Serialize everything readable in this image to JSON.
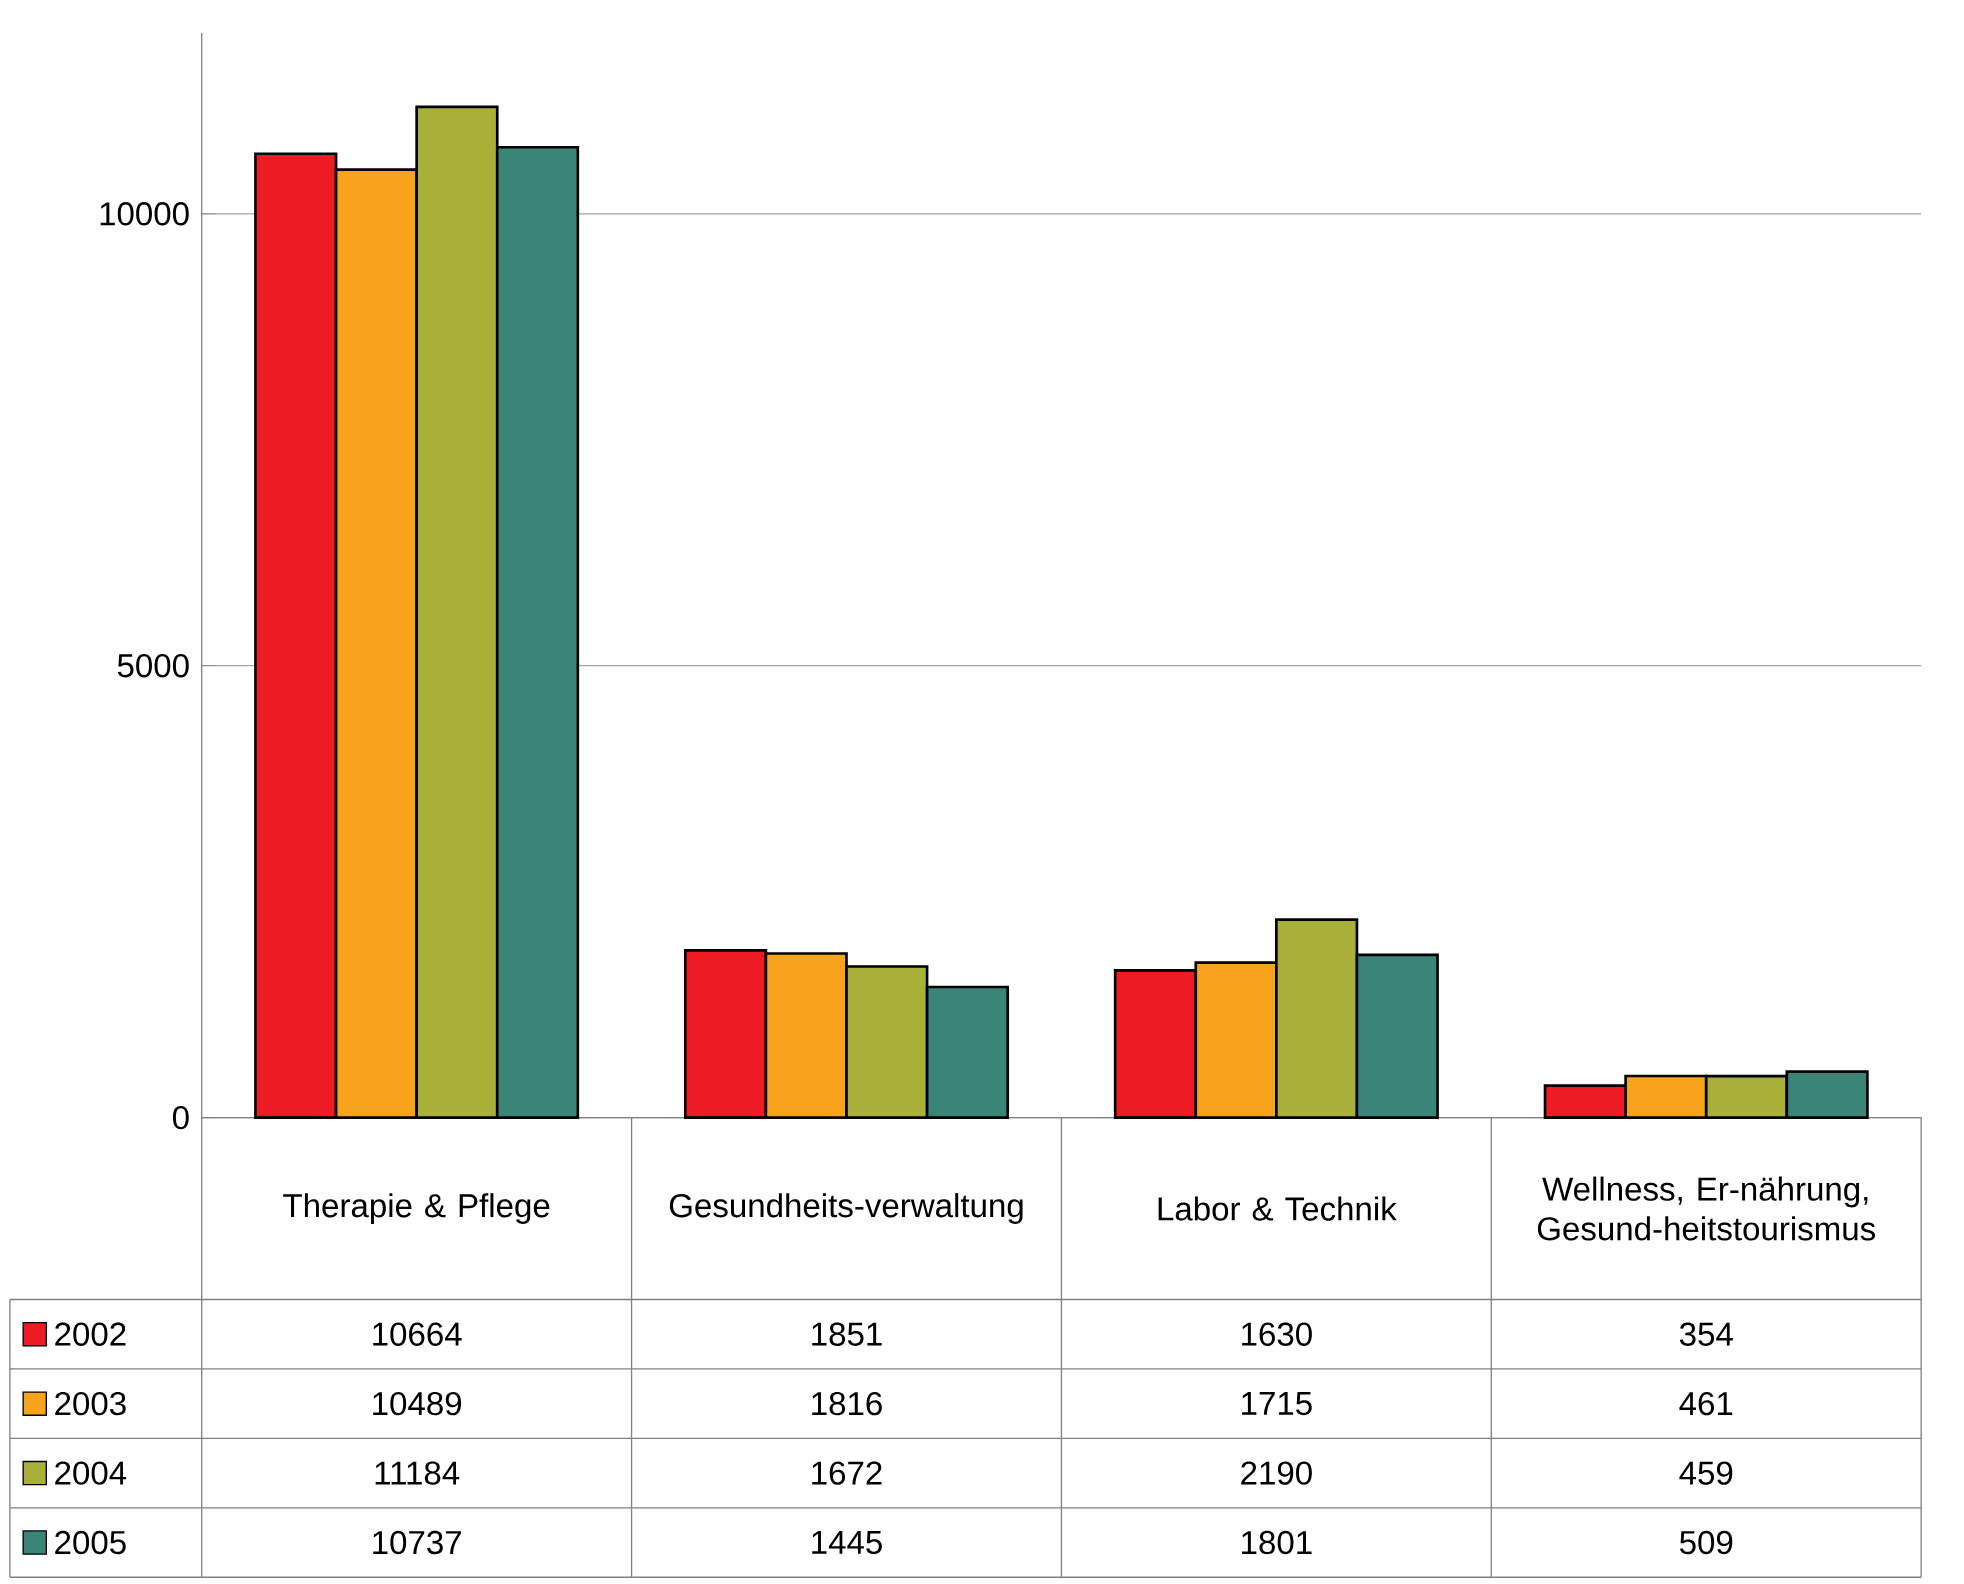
{
  "chart_data": {
    "type": "bar",
    "categories": [
      "Therapie & Pflege",
      "Gesundheits-verwaltung",
      "Labor & Technik",
      "Wellness, Er-nährung, Gesund-heitstourismus"
    ],
    "series": [
      {
        "name": "2002",
        "color": "#ed1c24",
        "values": [
          10664,
          1851,
          1630,
          354
        ]
      },
      {
        "name": "2003",
        "color": "#f7a31c",
        "values": [
          10489,
          1816,
          1715,
          461
        ]
      },
      {
        "name": "2004",
        "color": "#a8b038",
        "values": [
          11184,
          1672,
          2190,
          459
        ]
      },
      {
        "name": "2005",
        "color": "#3a8478",
        "values": [
          10737,
          1445,
          1801,
          509
        ]
      }
    ],
    "ylim": [
      0,
      12000
    ],
    "yticks": [
      0,
      5000,
      10000
    ],
    "grid": "y",
    "legend": "bottom left",
    "data_labels": true
  }
}
